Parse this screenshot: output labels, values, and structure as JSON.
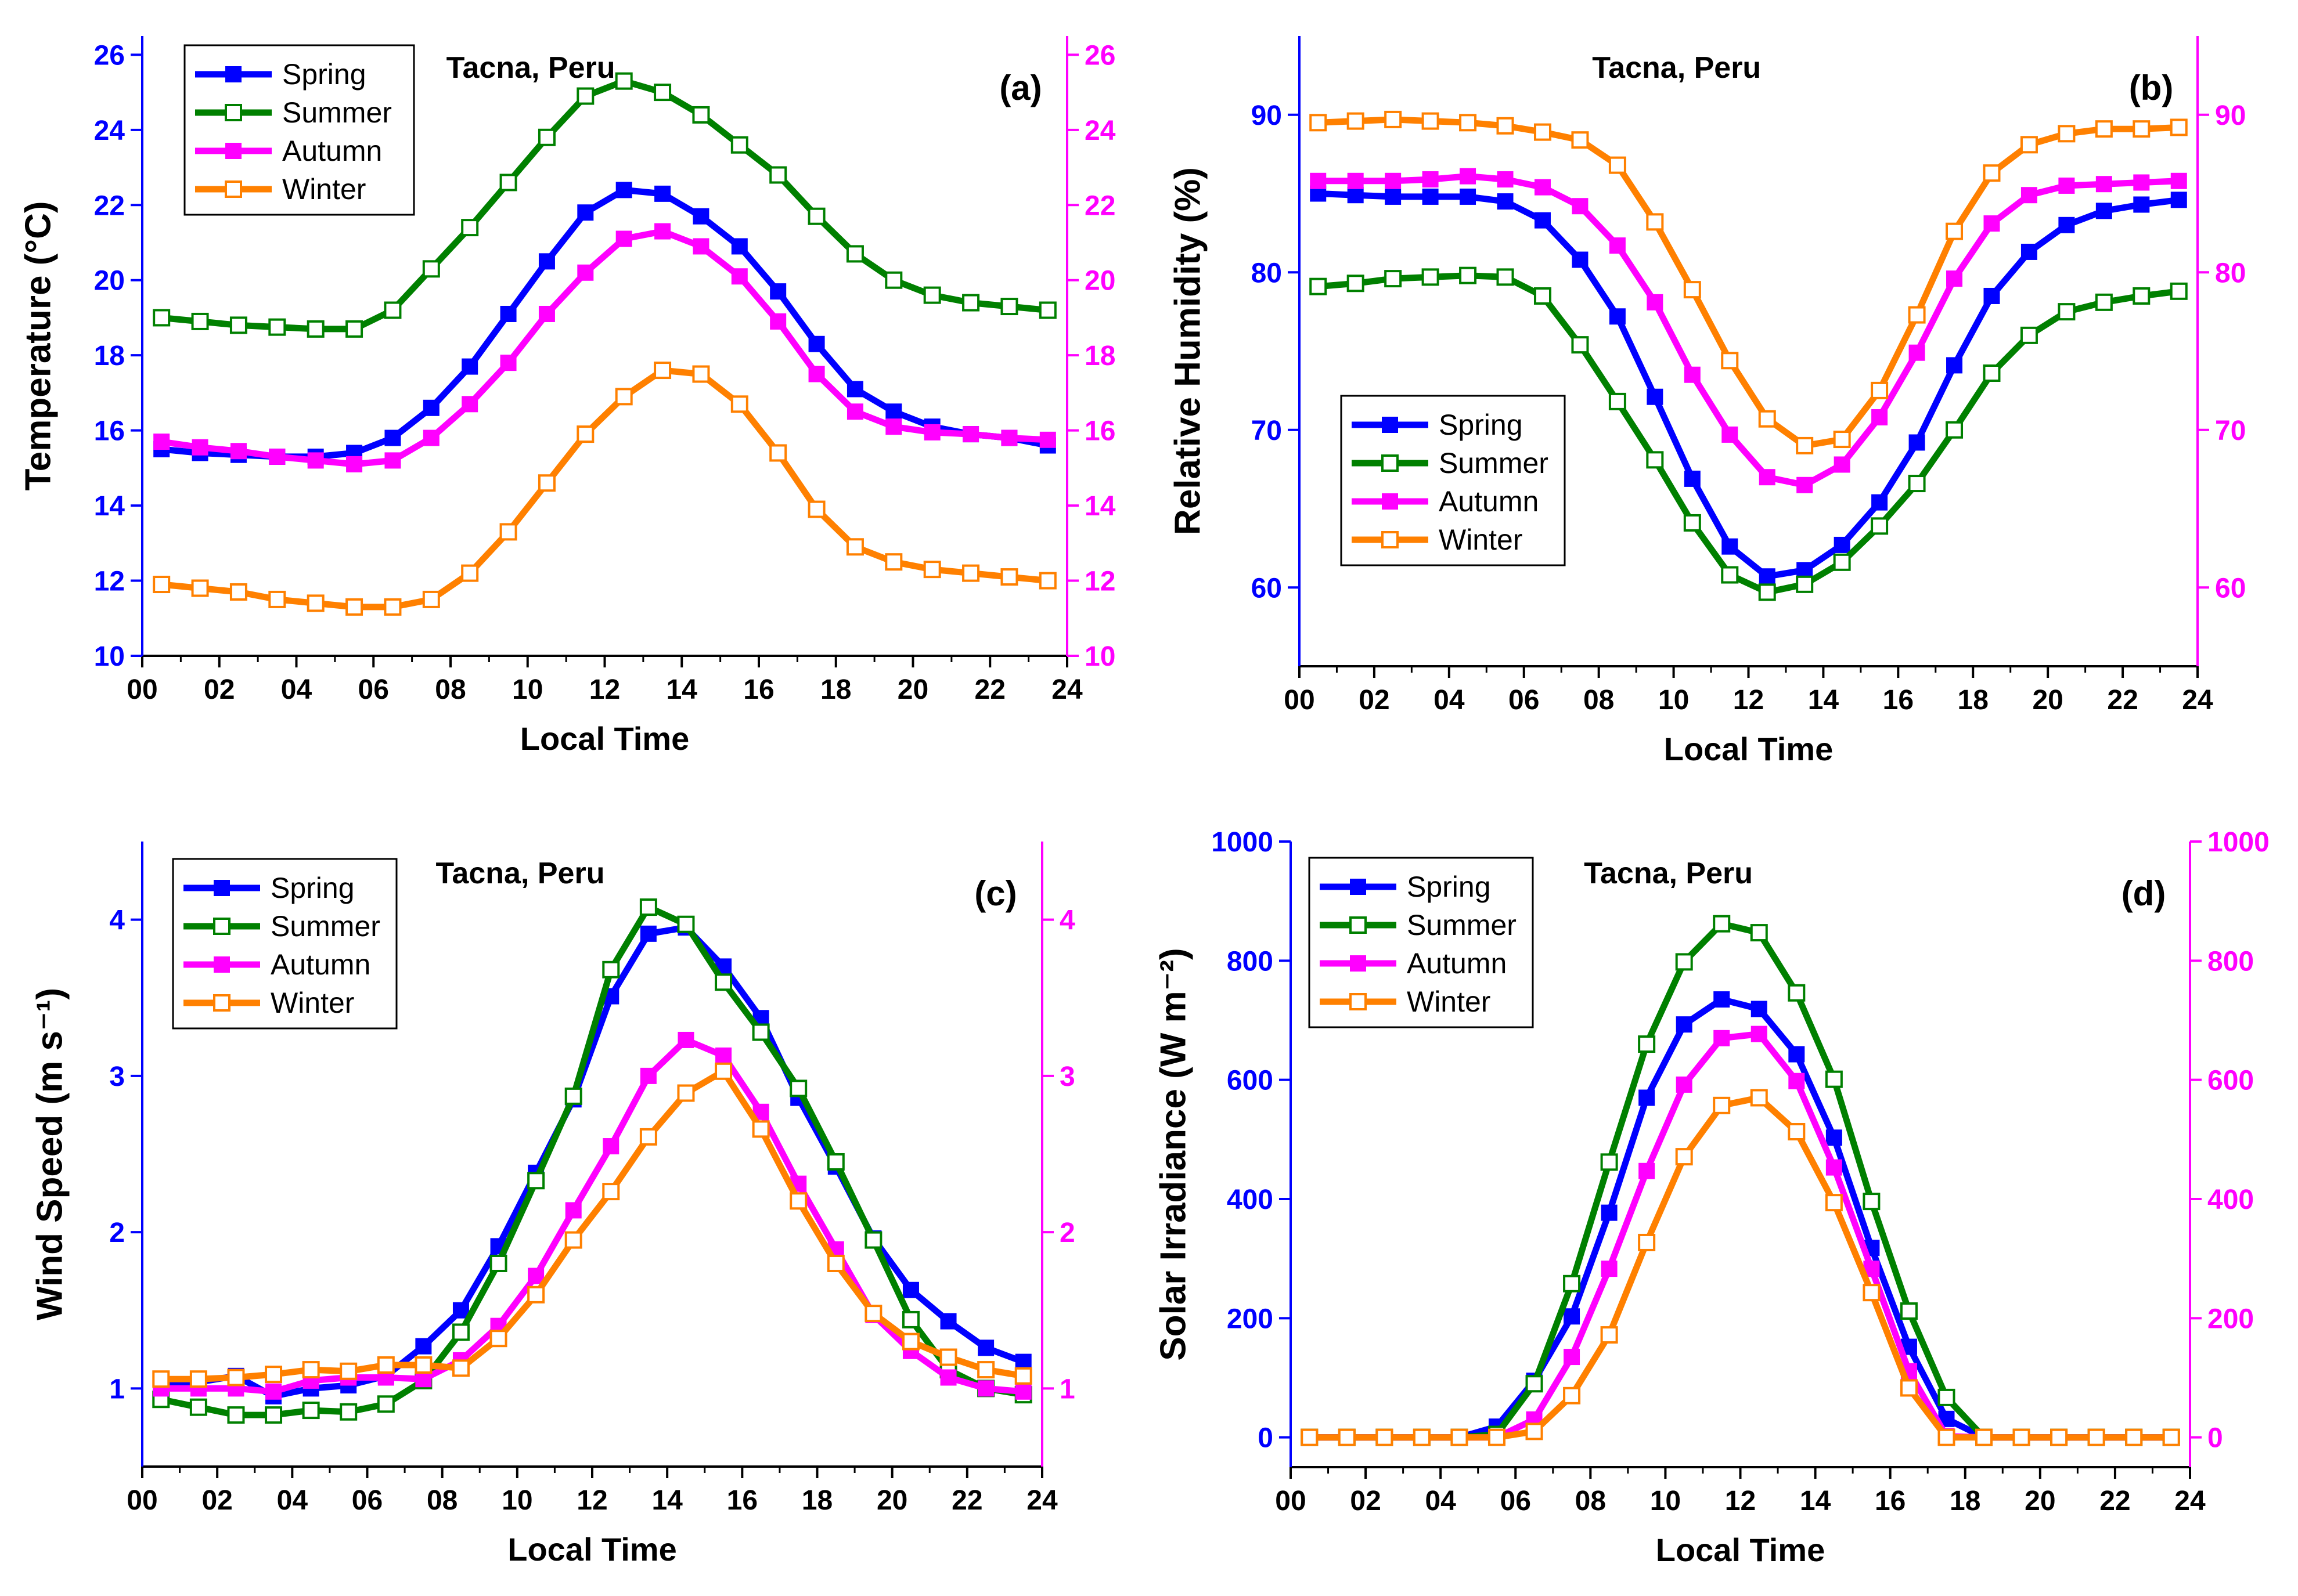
{
  "colors": {
    "spring": "#0000ff",
    "summer": "#008000",
    "autumn": "#ff00ff",
    "winter": "#ff8000",
    "left_axis": "#0000ff",
    "right_axis": "#ff00ff"
  },
  "chart_data": [
    {
      "type": "line",
      "panel_label": "(a)",
      "location_title": "Tacna, Peru",
      "xlabel": "Local Time",
      "ylabel": "Temperature (°C)",
      "xlim": [
        0,
        24
      ],
      "ylim": [
        10,
        26.5
      ],
      "x_ticks": [
        "00",
        "02",
        "04",
        "06",
        "08",
        "10",
        "12",
        "14",
        "16",
        "18",
        "20",
        "22",
        "24"
      ],
      "y_ticks": [
        10,
        12,
        14,
        16,
        18,
        20,
        22,
        24,
        26
      ],
      "right_y_ticks": [
        10,
        12,
        14,
        16,
        18,
        20,
        22,
        24,
        26
      ],
      "legend": [
        "Spring",
        "Summer",
        "Autumn",
        "Winter"
      ],
      "legend_position": "top-left",
      "x": [
        0.5,
        1.5,
        2.5,
        3.5,
        4.5,
        5.5,
        6.5,
        7.5,
        8.5,
        9.5,
        10.5,
        11.5,
        12.5,
        13.5,
        14.5,
        15.5,
        16.5,
        17.5,
        18.5,
        19.5,
        20.5,
        21.5,
        22.5,
        23.5
      ],
      "series": [
        {
          "name": "Spring",
          "marker": "filled",
          "values": [
            15.5,
            15.4,
            15.35,
            15.3,
            15.3,
            15.4,
            15.8,
            16.6,
            17.7,
            19.1,
            20.5,
            21.8,
            22.4,
            22.3,
            21.7,
            20.9,
            19.7,
            18.3,
            17.1,
            16.5,
            16.1,
            15.9,
            15.8,
            15.6
          ]
        },
        {
          "name": "Summer",
          "marker": "open",
          "values": [
            19.0,
            18.9,
            18.8,
            18.75,
            18.7,
            18.7,
            19.2,
            20.3,
            21.4,
            22.6,
            23.8,
            24.9,
            25.3,
            25.0,
            24.4,
            23.6,
            22.8,
            21.7,
            20.7,
            20.0,
            19.6,
            19.4,
            19.3,
            19.2
          ]
        },
        {
          "name": "Autumn",
          "marker": "filled",
          "values": [
            15.7,
            15.55,
            15.45,
            15.3,
            15.2,
            15.1,
            15.2,
            15.8,
            16.7,
            17.8,
            19.1,
            20.2,
            21.1,
            21.3,
            20.9,
            20.1,
            18.9,
            17.5,
            16.5,
            16.1,
            15.95,
            15.9,
            15.8,
            15.75
          ]
        },
        {
          "name": "Winter",
          "marker": "open",
          "values": [
            11.9,
            11.8,
            11.7,
            11.5,
            11.4,
            11.3,
            11.3,
            11.5,
            12.2,
            13.3,
            14.6,
            15.9,
            16.9,
            17.6,
            17.5,
            16.7,
            15.4,
            13.9,
            12.9,
            12.5,
            12.3,
            12.2,
            12.1,
            12.0
          ]
        }
      ]
    },
    {
      "type": "line",
      "panel_label": "(b)",
      "location_title": "Tacna, Peru",
      "xlabel": "Local Time",
      "ylabel": "Relative Humidity (%)",
      "xlim": [
        0,
        24
      ],
      "ylim": [
        55,
        95
      ],
      "x_ticks": [
        "00",
        "02",
        "04",
        "06",
        "08",
        "10",
        "12",
        "14",
        "16",
        "18",
        "20",
        "22",
        "24"
      ],
      "y_ticks": [
        60,
        70,
        80,
        90
      ],
      "right_y_ticks": [
        60,
        70,
        80,
        90
      ],
      "legend": [
        "Spring",
        "Summer",
        "Autumn",
        "Winter"
      ],
      "legend_position": "center-left",
      "x": [
        0.5,
        1.5,
        2.5,
        3.5,
        4.5,
        5.5,
        6.5,
        7.5,
        8.5,
        9.5,
        10.5,
        11.5,
        12.5,
        13.5,
        14.5,
        15.5,
        16.5,
        17.5,
        18.5,
        19.5,
        20.5,
        21.5,
        22.5,
        23.5
      ],
      "series": [
        {
          "name": "Spring",
          "marker": "filled",
          "values": [
            85.0,
            84.9,
            84.8,
            84.8,
            84.8,
            84.5,
            83.3,
            80.8,
            77.2,
            72.1,
            66.9,
            62.6,
            60.7,
            61.1,
            62.7,
            65.4,
            69.2,
            74.1,
            78.5,
            81.3,
            83.0,
            83.9,
            84.3,
            84.6
          ]
        },
        {
          "name": "Summer",
          "marker": "open",
          "values": [
            79.1,
            79.3,
            79.6,
            79.7,
            79.8,
            79.7,
            78.5,
            75.4,
            71.8,
            68.1,
            64.1,
            60.8,
            59.7,
            60.2,
            61.6,
            63.9,
            66.6,
            70.0,
            73.6,
            76.0,
            77.5,
            78.1,
            78.5,
            78.8
          ]
        },
        {
          "name": "Autumn",
          "marker": "filled",
          "values": [
            85.8,
            85.8,
            85.8,
            85.9,
            86.1,
            85.9,
            85.4,
            84.2,
            81.7,
            78.1,
            73.5,
            69.7,
            67.0,
            66.5,
            67.8,
            70.8,
            74.9,
            79.6,
            83.1,
            84.9,
            85.5,
            85.6,
            85.7,
            85.8
          ]
        },
        {
          "name": "Winter",
          "marker": "open",
          "values": [
            89.5,
            89.6,
            89.7,
            89.6,
            89.5,
            89.3,
            88.9,
            88.4,
            86.8,
            83.2,
            78.9,
            74.4,
            70.7,
            69.0,
            69.4,
            72.5,
            77.3,
            82.6,
            86.3,
            88.1,
            88.8,
            89.1,
            89.1,
            89.2
          ]
        }
      ]
    },
    {
      "type": "line",
      "panel_label": "(c)",
      "location_title": "Tacna, Peru",
      "xlabel": "Local Time",
      "ylabel": "Wind Speed (m s⁻¹)",
      "xlim": [
        0,
        24
      ],
      "ylim": [
        0.5,
        4.5
      ],
      "x_ticks": [
        "00",
        "02",
        "04",
        "06",
        "08",
        "10",
        "12",
        "14",
        "16",
        "18",
        "20",
        "22",
        "24"
      ],
      "y_ticks": [
        1,
        2,
        3,
        4
      ],
      "right_y_ticks": [
        1,
        2,
        3,
        4
      ],
      "legend": [
        "Spring",
        "Summer",
        "Autumn",
        "Winter"
      ],
      "legend_position": "top-left",
      "x": [
        0.5,
        1.5,
        2.5,
        3.5,
        4.5,
        5.5,
        6.5,
        7.5,
        8.5,
        9.5,
        10.5,
        11.5,
        12.5,
        13.5,
        14.5,
        15.5,
        16.5,
        17.5,
        18.5,
        19.5,
        20.5,
        21.5,
        22.5,
        23.5
      ],
      "series": [
        {
          "name": "Spring",
          "marker": "filled",
          "values": [
            1.04,
            1.04,
            1.08,
            0.95,
            1.0,
            1.02,
            1.08,
            1.27,
            1.5,
            1.91,
            2.38,
            2.85,
            3.51,
            3.91,
            3.95,
            3.7,
            3.37,
            2.86,
            2.42,
            1.96,
            1.63,
            1.43,
            1.26,
            1.17
          ]
        },
        {
          "name": "Summer",
          "marker": "open",
          "values": [
            0.93,
            0.88,
            0.83,
            0.83,
            0.86,
            0.85,
            0.9,
            1.05,
            1.36,
            1.8,
            2.33,
            2.87,
            3.68,
            4.08,
            3.97,
            3.6,
            3.28,
            2.92,
            2.45,
            1.95,
            1.44,
            1.12,
            1.0,
            0.96
          ]
        },
        {
          "name": "Autumn",
          "marker": "filled",
          "values": [
            1.0,
            1.0,
            1.0,
            0.98,
            1.05,
            1.07,
            1.07,
            1.06,
            1.18,
            1.4,
            1.72,
            2.14,
            2.55,
            3.0,
            3.23,
            3.13,
            2.77,
            2.31,
            1.89,
            1.47,
            1.24,
            1.07,
            1.0,
            0.98
          ]
        },
        {
          "name": "Winter",
          "marker": "open",
          "values": [
            1.06,
            1.06,
            1.07,
            1.09,
            1.12,
            1.11,
            1.15,
            1.15,
            1.13,
            1.32,
            1.6,
            1.95,
            2.26,
            2.61,
            2.89,
            3.03,
            2.66,
            2.2,
            1.8,
            1.48,
            1.3,
            1.2,
            1.12,
            1.08
          ]
        }
      ]
    },
    {
      "type": "line",
      "panel_label": "(d)",
      "location_title": "Tacna, Peru",
      "xlabel": "Local Time",
      "ylabel": "Solar Irradiance (W m⁻²)",
      "xlim": [
        0,
        24
      ],
      "ylim": [
        -50,
        1000
      ],
      "x_ticks": [
        "00",
        "02",
        "04",
        "06",
        "08",
        "10",
        "12",
        "14",
        "16",
        "18",
        "20",
        "22",
        "24"
      ],
      "y_ticks": [
        0,
        200,
        400,
        600,
        800,
        1000
      ],
      "right_y_ticks": [
        0,
        200,
        400,
        600,
        800,
        1000
      ],
      "legend": [
        "Spring",
        "Summer",
        "Autumn",
        "Winter"
      ],
      "legend_position": "top-left",
      "x": [
        0.5,
        1.5,
        2.5,
        3.5,
        4.5,
        5.5,
        6.5,
        7.5,
        8.5,
        9.5,
        10.5,
        11.5,
        12.5,
        13.5,
        14.5,
        15.5,
        16.5,
        17.5,
        18.5,
        19.5,
        20.5,
        21.5,
        22.5,
        23.5
      ],
      "series": [
        {
          "name": "Spring",
          "marker": "filled",
          "values": [
            0,
            0,
            0,
            0,
            0,
            18,
            95,
            203,
            377,
            570,
            693,
            735,
            719,
            643,
            503,
            318,
            152,
            31,
            0,
            0,
            0,
            0,
            0,
            0
          ]
        },
        {
          "name": "Summer",
          "marker": "open",
          "values": [
            0,
            0,
            0,
            0,
            0,
            5,
            90,
            258,
            462,
            660,
            798,
            862,
            847,
            746,
            601,
            396,
            212,
            67,
            0,
            0,
            0,
            0,
            0,
            0
          ]
        },
        {
          "name": "Autumn",
          "marker": "filled",
          "values": [
            0,
            0,
            0,
            0,
            0,
            0,
            30,
            135,
            283,
            447,
            592,
            670,
            677,
            598,
            453,
            283,
            111,
            2,
            0,
            0,
            0,
            0,
            0,
            0
          ]
        },
        {
          "name": "Winter",
          "marker": "open",
          "values": [
            0,
            0,
            0,
            0,
            0,
            0,
            10,
            70,
            172,
            327,
            471,
            557,
            570,
            513,
            394,
            243,
            83,
            0,
            0,
            0,
            0,
            0,
            0,
            0
          ]
        }
      ]
    }
  ]
}
